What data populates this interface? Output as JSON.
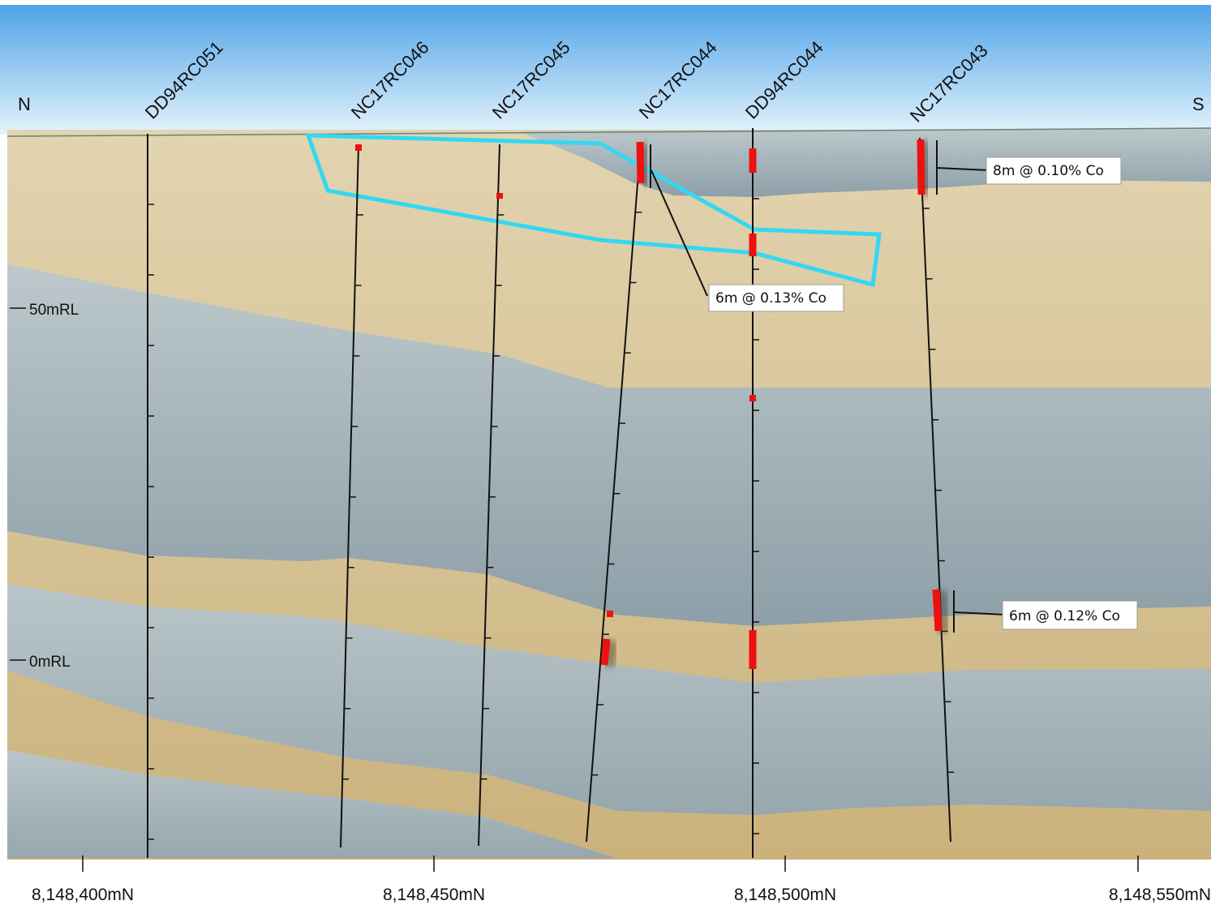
{
  "section": {
    "north_label": "N",
    "south_label": "S",
    "colors": {
      "sky_top": "#4fa3e8",
      "sky_bottom": "#dff0fb",
      "sand": "#d8c496",
      "slate": "#a9b8bd",
      "target_outline": "#33d8f2",
      "intercept": "#ee1111",
      "collar_trace": "#111111"
    }
  },
  "rl_labels": [
    "50mRL",
    "0mRL"
  ],
  "northing_labels": [
    "8,148,400mN",
    "8,148,450mN",
    "8,148,500mN",
    "8,148,550mN"
  ],
  "drillholes": [
    {
      "id": "DD94RC051"
    },
    {
      "id": "NC17RC046"
    },
    {
      "id": "NC17RC045"
    },
    {
      "id": "NC17RC044"
    },
    {
      "id": "DD94RC044"
    },
    {
      "id": "NC17RC043"
    }
  ],
  "callouts": [
    {
      "text": "8m @ 0.10% Co"
    },
    {
      "text": "6m @ 0.13% Co"
    },
    {
      "text": "6m @ 0.12% Co"
    }
  ]
}
